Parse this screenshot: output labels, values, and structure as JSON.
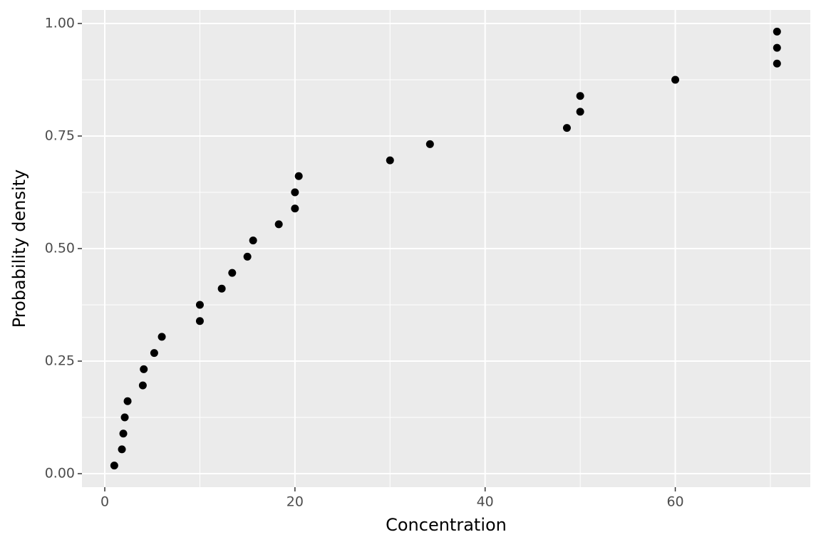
{
  "chart_data": {
    "type": "scatter",
    "xlabel": "Concentration",
    "ylabel": "Probability density",
    "x": [
      1.0,
      1.8,
      1.95,
      2.1,
      2.4,
      4.0,
      4.1,
      5.2,
      6.0,
      10.0,
      10.0,
      12.3,
      13.4,
      15.0,
      15.6,
      18.3,
      20.0,
      20.0,
      20.4,
      30.0,
      34.2,
      48.6,
      50.0,
      50.0,
      60.0,
      70.7,
      70.7,
      70.7
    ],
    "values": [
      0.018,
      0.054,
      0.089,
      0.125,
      0.161,
      0.196,
      0.232,
      0.268,
      0.304,
      0.339,
      0.375,
      0.411,
      0.446,
      0.482,
      0.518,
      0.554,
      0.589,
      0.625,
      0.661,
      0.696,
      0.732,
      0.768,
      0.804,
      0.839,
      0.875,
      0.911,
      0.946,
      0.982
    ],
    "color": "#000000",
    "xlim": [
      -2.4,
      74.2
    ],
    "ylim": [
      -0.03,
      1.03
    ],
    "xticks": [
      0,
      20,
      40,
      60
    ],
    "yticks": [
      {
        "value": 0,
        "label": "0.00"
      },
      {
        "value": 0.25,
        "label": "0.25"
      },
      {
        "value": 0.5,
        "label": "0.50"
      },
      {
        "value": 0.75,
        "label": "0.75"
      },
      {
        "value": 1,
        "label": "1.00"
      }
    ],
    "xminor": [
      10,
      30,
      50,
      70
    ],
    "yminor": [
      0.125,
      0.375,
      0.625,
      0.875
    ],
    "grid": true
  }
}
